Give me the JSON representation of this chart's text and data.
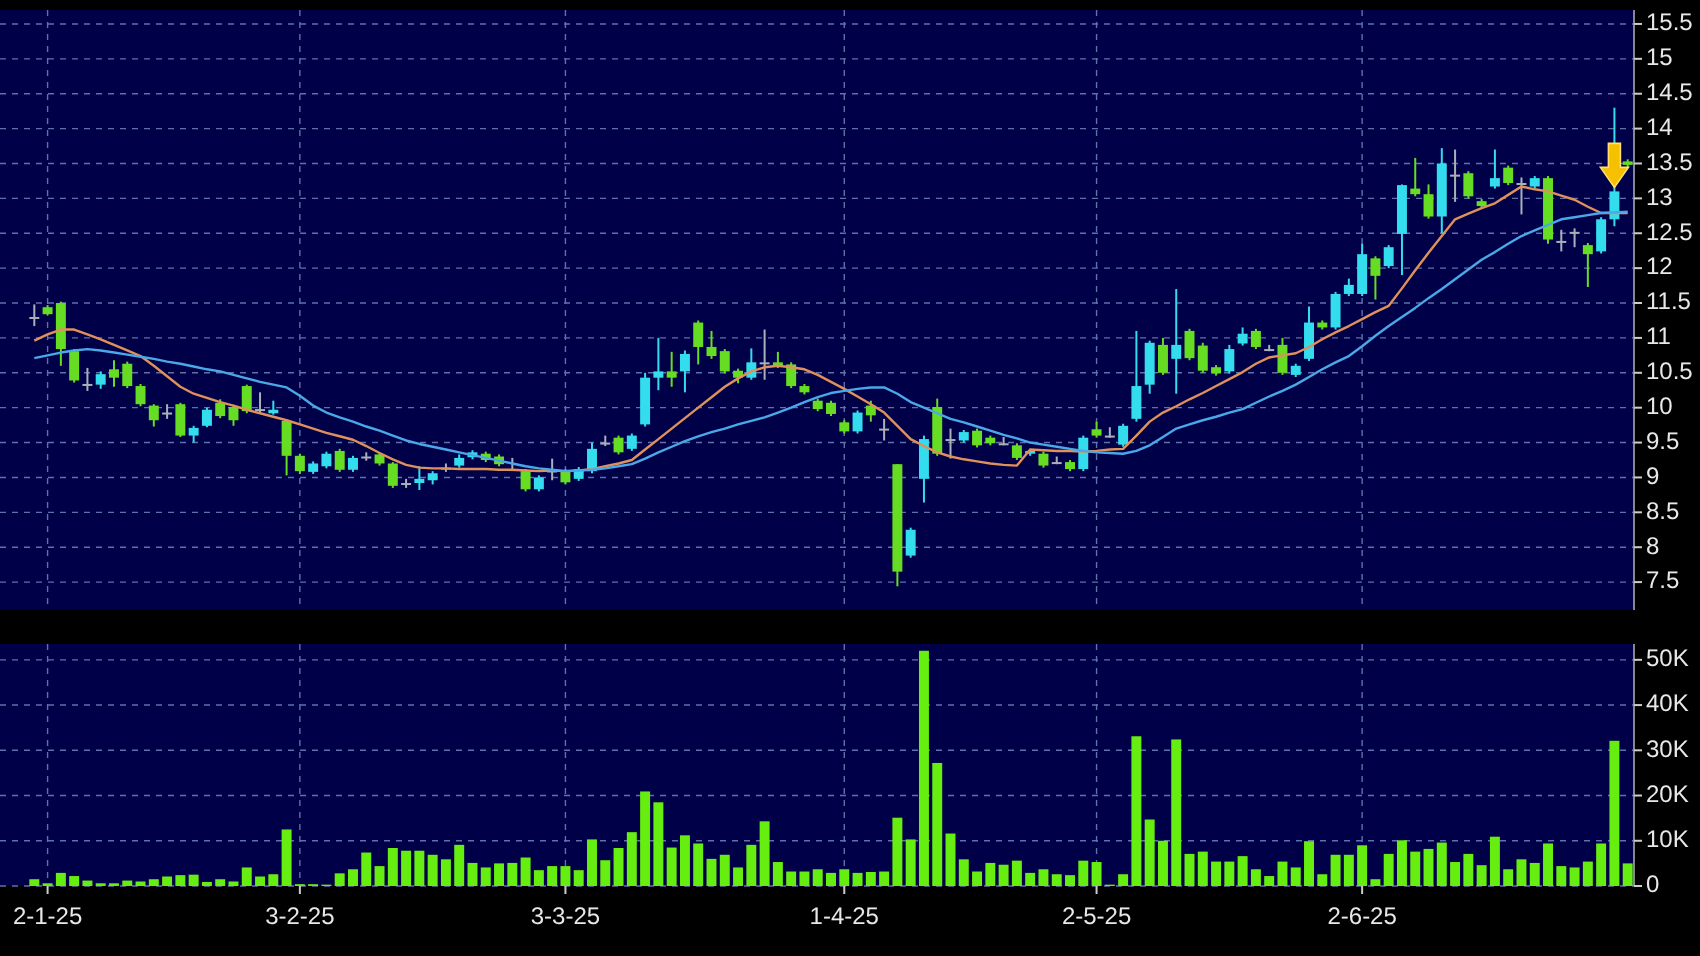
{
  "chart_data": [
    {
      "type": "candlestick",
      "categories": [
        null,
        null,
        null,
        null,
        null,
        null,
        null,
        null,
        null,
        null,
        null,
        null,
        null,
        null,
        null,
        null,
        null,
        null,
        null,
        null,
        null,
        null,
        null,
        null,
        null,
        null,
        null,
        null,
        null,
        null,
        null,
        null,
        null,
        null,
        null,
        null,
        null,
        null,
        null,
        null,
        null,
        null,
        null,
        null,
        null,
        null,
        null,
        null,
        null,
        null,
        null,
        null,
        null,
        null,
        null,
        null,
        null,
        null,
        null,
        null,
        null,
        null,
        null,
        null,
        null,
        null,
        null,
        null,
        null,
        null,
        null,
        null,
        null,
        null,
        null,
        null,
        null,
        null,
        null,
        null,
        null,
        null,
        null,
        null,
        null,
        null,
        null,
        null,
        null,
        null,
        null,
        null,
        null,
        null,
        null,
        null,
        null,
        null,
        null,
        null,
        null,
        null,
        null,
        null,
        null,
        null,
        null,
        null,
        null,
        null,
        null,
        null,
        null,
        null,
        null,
        null,
        null,
        null,
        null,
        null,
        null
      ],
      "ohlc": [
        [
          11.3,
          11.48,
          11.17,
          11.3
        ],
        [
          11.44,
          11.47,
          11.33,
          11.34
        ],
        [
          11.5,
          11.52,
          10.6,
          10.84
        ],
        [
          10.81,
          10.84,
          10.36,
          10.39
        ],
        [
          10.34,
          10.57,
          10.24,
          10.34
        ],
        [
          10.33,
          10.52,
          10.27,
          10.48
        ],
        [
          10.55,
          10.68,
          10.3,
          10.43
        ],
        [
          10.63,
          10.66,
          10.28,
          10.31
        ],
        [
          10.31,
          10.34,
          10.02,
          10.05
        ],
        [
          10.03,
          10.05,
          9.73,
          9.82
        ],
        [
          9.93,
          10.05,
          9.84,
          9.93
        ],
        [
          10.05,
          10.07,
          9.58,
          9.6
        ],
        [
          9.6,
          9.74,
          9.5,
          9.71
        ],
        [
          9.74,
          10.0,
          9.72,
          9.97
        ],
        [
          10.07,
          10.12,
          9.85,
          9.88
        ],
        [
          10.01,
          10.04,
          9.74,
          9.82
        ],
        [
          10.31,
          10.33,
          9.92,
          9.95
        ],
        [
          9.98,
          10.22,
          9.91,
          9.98
        ],
        [
          9.92,
          10.1,
          9.9,
          9.97
        ],
        [
          9.81,
          9.82,
          9.03,
          9.31
        ],
        [
          9.31,
          9.34,
          9.05,
          9.09
        ],
        [
          9.08,
          9.23,
          9.05,
          9.2
        ],
        [
          9.16,
          9.37,
          9.13,
          9.34
        ],
        [
          9.38,
          9.41,
          9.08,
          9.11
        ],
        [
          9.11,
          9.31,
          9.08,
          9.28
        ],
        [
          9.3,
          9.36,
          9.24,
          9.3
        ],
        [
          9.33,
          9.36,
          9.17,
          9.2
        ],
        [
          9.2,
          9.22,
          8.85,
          8.88
        ],
        [
          8.92,
          8.98,
          8.85,
          8.92
        ],
        [
          8.92,
          9.16,
          8.82,
          8.98
        ],
        [
          8.96,
          9.09,
          8.9,
          9.06
        ],
        [
          9.14,
          9.2,
          9.08,
          9.14
        ],
        [
          9.17,
          9.33,
          9.14,
          9.28
        ],
        [
          9.29,
          9.39,
          9.26,
          9.36
        ],
        [
          9.34,
          9.37,
          9.22,
          9.25
        ],
        [
          9.3,
          9.33,
          9.16,
          9.19
        ],
        [
          9.12,
          9.28,
          9.1,
          9.12
        ],
        [
          9.09,
          9.12,
          8.8,
          8.83
        ],
        [
          8.83,
          9.03,
          8.8,
          9.0
        ],
        [
          9.1,
          9.27,
          8.96,
          9.1
        ],
        [
          9.09,
          9.12,
          8.9,
          8.93
        ],
        [
          8.98,
          9.15,
          8.95,
          9.12
        ],
        [
          9.09,
          9.5,
          9.06,
          9.41
        ],
        [
          9.5,
          9.6,
          9.45,
          9.5
        ],
        [
          9.57,
          9.6,
          9.33,
          9.36
        ],
        [
          9.41,
          9.63,
          9.38,
          9.6
        ],
        [
          9.76,
          10.5,
          9.73,
          10.43
        ],
        [
          10.43,
          11.0,
          10.25,
          10.52
        ],
        [
          10.52,
          10.8,
          10.3,
          10.43
        ],
        [
          10.52,
          10.82,
          10.22,
          10.77
        ],
        [
          11.22,
          11.25,
          10.62,
          10.87
        ],
        [
          10.87,
          11.1,
          10.7,
          10.74
        ],
        [
          10.81,
          10.84,
          10.49,
          10.52
        ],
        [
          10.53,
          10.56,
          10.35,
          10.43
        ],
        [
          10.43,
          10.85,
          10.4,
          10.65
        ],
        [
          10.65,
          11.12,
          10.4,
          10.65
        ],
        [
          10.65,
          10.8,
          10.57,
          10.6
        ],
        [
          10.62,
          10.65,
          10.28,
          10.31
        ],
        [
          10.31,
          10.34,
          10.19,
          10.22
        ],
        [
          10.1,
          10.13,
          9.95,
          9.98
        ],
        [
          10.07,
          10.1,
          9.88,
          9.91
        ],
        [
          9.79,
          9.82,
          9.63,
          9.66
        ],
        [
          9.66,
          9.96,
          9.63,
          9.93
        ],
        [
          10.03,
          10.1,
          9.8,
          9.89
        ],
        [
          9.7,
          9.84,
          9.53,
          9.7
        ],
        [
          9.19,
          9.19,
          7.44,
          7.65
        ],
        [
          7.88,
          8.28,
          7.85,
          8.25
        ],
        [
          8.98,
          9.6,
          8.64,
          9.55
        ],
        [
          10.01,
          10.13,
          9.31,
          9.34
        ],
        [
          9.55,
          9.7,
          9.27,
          9.55
        ],
        [
          9.53,
          9.68,
          9.5,
          9.65
        ],
        [
          9.67,
          9.7,
          9.43,
          9.46
        ],
        [
          9.57,
          9.6,
          9.46,
          9.49
        ],
        [
          9.49,
          9.58,
          9.46,
          9.49
        ],
        [
          9.46,
          9.49,
          9.25,
          9.28
        ],
        [
          9.34,
          9.41,
          9.31,
          9.38
        ],
        [
          9.34,
          9.37,
          9.14,
          9.17
        ],
        [
          9.22,
          9.3,
          9.19,
          9.22
        ],
        [
          9.22,
          9.25,
          9.09,
          9.12
        ],
        [
          9.12,
          9.6,
          9.09,
          9.57
        ],
        [
          9.69,
          9.8,
          9.57,
          9.6
        ],
        [
          9.6,
          9.72,
          9.57,
          9.6
        ],
        [
          9.47,
          9.77,
          9.44,
          9.74
        ],
        [
          9.84,
          11.1,
          9.8,
          10.31
        ],
        [
          10.33,
          10.96,
          10.2,
          10.93
        ],
        [
          10.9,
          11.0,
          10.47,
          10.5
        ],
        [
          10.7,
          11.7,
          10.2,
          10.9
        ],
        [
          11.1,
          11.13,
          10.68,
          10.71
        ],
        [
          10.89,
          10.93,
          10.5,
          10.53
        ],
        [
          10.58,
          10.61,
          10.46,
          10.49
        ],
        [
          10.52,
          10.9,
          10.49,
          10.84
        ],
        [
          10.92,
          11.15,
          10.89,
          11.06
        ],
        [
          11.1,
          11.13,
          10.84,
          10.87
        ],
        [
          10.84,
          10.9,
          10.81,
          10.84
        ],
        [
          10.9,
          11.0,
          10.47,
          10.5
        ],
        [
          10.47,
          10.63,
          10.44,
          10.6
        ],
        [
          10.7,
          11.45,
          10.67,
          11.22
        ],
        [
          11.22,
          11.25,
          11.12,
          11.15
        ],
        [
          11.15,
          11.66,
          11.12,
          11.63
        ],
        [
          11.63,
          11.85,
          11.6,
          11.76
        ],
        [
          11.63,
          12.35,
          11.6,
          12.2
        ],
        [
          12.14,
          12.17,
          11.55,
          11.89
        ],
        [
          12.03,
          12.33,
          12.0,
          12.3
        ],
        [
          12.49,
          13.2,
          11.9,
          13.19
        ],
        [
          13.14,
          13.58,
          13.03,
          13.06
        ],
        [
          13.06,
          13.2,
          12.71,
          12.74
        ],
        [
          12.74,
          13.72,
          12.5,
          13.5
        ],
        [
          13.34,
          13.7,
          12.95,
          13.34
        ],
        [
          13.36,
          13.39,
          13.0,
          13.03
        ],
        [
          12.96,
          12.99,
          12.86,
          12.89
        ],
        [
          13.17,
          13.7,
          13.14,
          13.29
        ],
        [
          13.44,
          13.47,
          13.19,
          13.22
        ],
        [
          13.22,
          13.3,
          12.77,
          13.22
        ],
        [
          13.17,
          13.32,
          13.14,
          13.29
        ],
        [
          13.29,
          13.32,
          12.35,
          12.41
        ],
        [
          12.39,
          12.55,
          12.24,
          12.39
        ],
        [
          12.52,
          12.57,
          12.3,
          12.52
        ],
        [
          12.33,
          12.36,
          11.73,
          12.2
        ],
        [
          12.24,
          12.73,
          12.21,
          12.7
        ],
        [
          12.7,
          14.3,
          12.6,
          13.1
        ],
        [
          13.53,
          13.56,
          13.45,
          13.48
        ]
      ],
      "colors": [
        "#aab0b8",
        "#66dd22",
        "#66dd22",
        "#66dd22",
        "#aab0b8",
        "#33ddee",
        "#66dd22",
        "#66dd22",
        "#66dd22",
        "#66dd22",
        "#aab0b8",
        "#66dd22",
        "#33ddee",
        "#33ddee",
        "#66dd22",
        "#66dd22",
        "#66dd22",
        "#aab0b8",
        "#33ddee",
        "#66dd22",
        "#66dd22",
        "#33ddee",
        "#33ddee",
        "#66dd22",
        "#33ddee",
        "#aab0b8",
        "#66dd22",
        "#66dd22",
        "#aab0b8",
        "#33ddee",
        "#33ddee",
        "#aab0b8",
        "#33ddee",
        "#33ddee",
        "#66dd22",
        "#66dd22",
        "#aab0b8",
        "#66dd22",
        "#33ddee",
        "#aab0b8",
        "#66dd22",
        "#33ddee",
        "#33ddee",
        "#aab0b8",
        "#66dd22",
        "#33ddee",
        "#33ddee",
        "#33ddee",
        "#66dd22",
        "#33ddee",
        "#66dd22",
        "#66dd22",
        "#66dd22",
        "#66dd22",
        "#33ddee",
        "#aab0b8",
        "#66dd22",
        "#66dd22",
        "#66dd22",
        "#66dd22",
        "#66dd22",
        "#66dd22",
        "#33ddee",
        "#66dd22",
        "#aab0b8",
        "#66dd22",
        "#33ddee",
        "#33ddee",
        "#66dd22",
        "#aab0b8",
        "#33ddee",
        "#66dd22",
        "#66dd22",
        "#aab0b8",
        "#66dd22",
        "#33ddee",
        "#66dd22",
        "#aab0b8",
        "#66dd22",
        "#33ddee",
        "#66dd22",
        "#aab0b8",
        "#33ddee",
        "#33ddee",
        "#33ddee",
        "#66dd22",
        "#33ddee",
        "#66dd22",
        "#66dd22",
        "#66dd22",
        "#33ddee",
        "#33ddee",
        "#66dd22",
        "#aab0b8",
        "#66dd22",
        "#33ddee",
        "#33ddee",
        "#66dd22",
        "#33ddee",
        "#33ddee",
        "#33ddee",
        "#66dd22",
        "#33ddee",
        "#33ddee",
        "#66dd22",
        "#66dd22",
        "#33ddee",
        "#aab0b8",
        "#66dd22",
        "#66dd22",
        "#33ddee",
        "#66dd22",
        "#aab0b8",
        "#33ddee",
        "#66dd22",
        "#aab0b8",
        "#aab0b8",
        "#66dd22",
        "#33ddee",
        "#33ddee",
        "#66dd22"
      ],
      "series": [
        {
          "type": "line",
          "color": "#e0905a",
          "values": [
            10.96,
            11.05,
            11.12,
            11.12,
            11.05,
            10.98,
            10.9,
            10.82,
            10.74,
            10.6,
            10.45,
            10.3,
            10.2,
            10.14,
            10.08,
            10.03,
            9.97,
            9.92,
            9.87,
            9.82,
            9.76,
            9.7,
            9.64,
            9.59,
            9.54,
            9.45,
            9.35,
            9.26,
            9.18,
            9.14,
            9.13,
            9.13,
            9.12,
            9.12,
            9.12,
            9.11,
            9.11,
            9.1,
            9.09,
            9.1,
            9.09,
            9.1,
            9.12,
            9.16,
            9.2,
            9.25,
            9.4,
            9.55,
            9.7,
            9.85,
            10.0,
            10.15,
            10.3,
            10.42,
            10.52,
            10.58,
            10.6,
            10.58,
            10.55,
            10.47,
            10.37,
            10.27,
            10.16,
            10.05,
            9.93,
            9.74,
            9.55,
            9.45,
            9.36,
            9.3,
            9.26,
            9.23,
            9.2,
            9.18,
            9.17,
            9.4,
            9.39,
            9.38,
            9.38,
            9.37,
            9.38,
            9.4,
            9.41,
            9.6,
            9.8,
            9.93,
            10.02,
            10.12,
            10.21,
            10.31,
            10.41,
            10.51,
            10.63,
            10.72,
            10.75,
            10.78,
            10.87,
            10.98,
            11.08,
            11.17,
            11.27,
            11.37,
            11.46,
            11.71,
            11.97,
            12.22,
            12.46,
            12.7,
            12.78,
            12.86,
            12.93,
            13.05,
            13.17,
            13.13,
            13.1,
            13.04,
            12.98,
            12.88,
            12.79,
            12.79,
            12.79
          ]
        },
        {
          "type": "line",
          "color": "#4aa8e8",
          "values": [
            10.71,
            10.75,
            10.79,
            10.82,
            10.84,
            10.82,
            10.79,
            10.76,
            10.73,
            10.7,
            10.66,
            10.63,
            10.59,
            10.55,
            10.52,
            10.47,
            10.42,
            10.37,
            10.33,
            10.29,
            10.17,
            10.03,
            9.93,
            9.86,
            9.8,
            9.73,
            9.67,
            9.6,
            9.53,
            9.48,
            9.44,
            9.4,
            9.36,
            9.32,
            9.28,
            9.24,
            9.2,
            9.16,
            9.13,
            9.11,
            9.09,
            9.1,
            9.11,
            9.13,
            9.16,
            9.19,
            9.27,
            9.36,
            9.44,
            9.52,
            9.59,
            9.65,
            9.7,
            9.76,
            9.81,
            9.86,
            9.93,
            10.0,
            10.08,
            10.15,
            10.21,
            10.24,
            10.27,
            10.29,
            10.29,
            10.2,
            10.08,
            10.0,
            9.92,
            9.84,
            9.79,
            9.73,
            9.67,
            9.61,
            9.56,
            9.5,
            9.47,
            9.44,
            9.41,
            9.38,
            9.36,
            9.35,
            9.34,
            9.38,
            9.46,
            9.58,
            9.7,
            9.76,
            9.82,
            9.87,
            9.93,
            9.98,
            10.07,
            10.16,
            10.24,
            10.33,
            10.44,
            10.55,
            10.65,
            10.74,
            10.88,
            11.03,
            11.17,
            11.3,
            11.43,
            11.57,
            11.7,
            11.84,
            11.98,
            12.12,
            12.23,
            12.35,
            12.46,
            12.54,
            12.62,
            12.7,
            12.73,
            12.76,
            12.79,
            12.8,
            12.81
          ]
        }
      ],
      "ylim": [
        7.1,
        15.7
      ],
      "yticks": [
        7.5,
        8,
        8.5,
        9,
        9.5,
        10,
        10.5,
        11,
        11.5,
        12,
        12.5,
        13,
        13.5,
        14,
        14.5,
        15,
        15.5
      ],
      "grid": true,
      "tick_labels": "y"
    },
    {
      "type": "bar",
      "categories": [
        null,
        "2-1-25",
        null,
        null,
        null,
        null,
        null,
        null,
        null,
        null,
        null,
        null,
        null,
        null,
        null,
        null,
        null,
        null,
        null,
        null,
        "3-2-25",
        null,
        null,
        null,
        null,
        null,
        null,
        null,
        null,
        null,
        null,
        null,
        null,
        null,
        null,
        null,
        null,
        null,
        null,
        null,
        "3-3-25",
        null,
        null,
        null,
        null,
        null,
        null,
        null,
        null,
        null,
        null,
        null,
        null,
        null,
        null,
        null,
        null,
        null,
        null,
        null,
        null,
        "1-4-25",
        null,
        null,
        null,
        null,
        null,
        null,
        null,
        null,
        null,
        null,
        null,
        null,
        null,
        null,
        null,
        null,
        null,
        null,
        "2-5-25",
        null,
        null,
        null,
        null,
        null,
        null,
        null,
        null,
        null,
        null,
        null,
        null,
        null,
        null,
        null,
        null,
        null,
        null,
        null,
        "2-6-25",
        null,
        null,
        null,
        null,
        null,
        null,
        null,
        null,
        null,
        null,
        null,
        null,
        null,
        null,
        null,
        null,
        null,
        null,
        null,
        null
      ],
      "values": [
        1500,
        600,
        2900,
        2200,
        1200,
        600,
        600,
        1200,
        1000,
        1500,
        2100,
        2400,
        2500,
        900,
        1500,
        1000,
        4100,
        2100,
        2600,
        12500,
        400,
        400,
        300,
        2800,
        3700,
        7400,
        4400,
        8400,
        7800,
        7800,
        6900,
        5900,
        9100,
        5100,
        4100,
        5000,
        5100,
        6300,
        3500,
        4400,
        4400,
        3500,
        10300,
        5700,
        8400,
        11900,
        20900,
        18500,
        8500,
        11200,
        9400,
        6000,
        6900,
        4100,
        9100,
        14300,
        5300,
        3200,
        3200,
        3700,
        2900,
        3700,
        2900,
        3100,
        3200,
        15100,
        10300,
        52000,
        27200,
        11600,
        5900,
        3200,
        5100,
        4700,
        5600,
        2900,
        3700,
        2600,
        2400,
        5600,
        5300,
        300,
        2600,
        33100,
        14700,
        10000,
        32400,
        7100,
        7600,
        5400,
        5400,
        6600,
        3700,
        2200,
        5400,
        4100,
        9900,
        2600,
        6900,
        6900,
        9000,
        1500,
        7100,
        10100,
        7600,
        8200,
        9600,
        5300,
        7100,
        4600,
        10900,
        3700,
        5900,
        5100,
        9400,
        4400,
        4100,
        5400,
        9400,
        32100,
        5000
      ],
      "color": "#66ee11",
      "ylim": [
        0,
        53500
      ],
      "yticks": [
        0,
        {
          "value": 10000,
          "label": "10K"
        },
        {
          "value": 20000,
          "label": "20K"
        },
        {
          "value": 30000,
          "label": "30K"
        },
        {
          "value": 40000,
          "label": "40K"
        },
        {
          "value": 50000,
          "label": "50K"
        }
      ],
      "grid": true
    }
  ]
}
